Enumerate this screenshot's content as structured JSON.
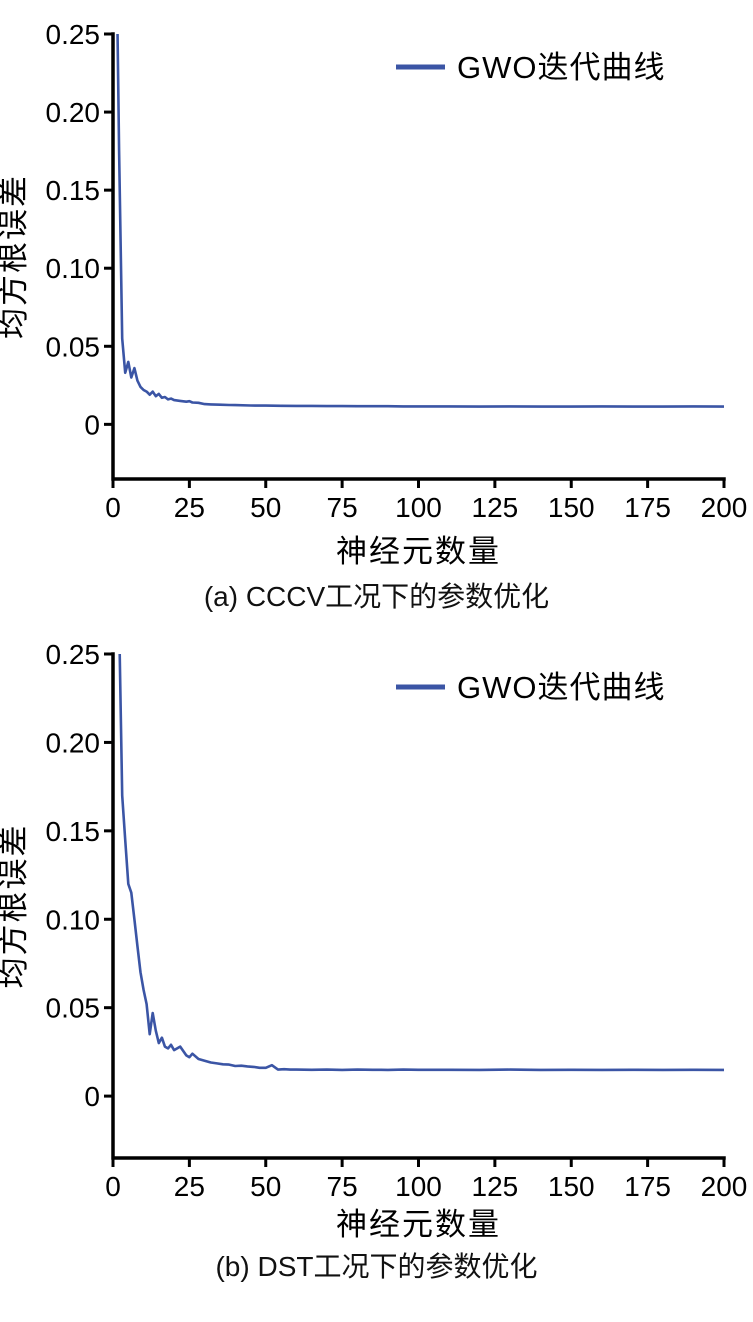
{
  "figure": {
    "accent_color": "#3b55a5",
    "axis_color": "#000000",
    "background": "#ffffff"
  },
  "chart_data": [
    {
      "type": "line",
      "caption": "(a) CCCV工况下的参数优化",
      "xlabel": "神经元数量",
      "ylabel": "均方根误差",
      "grid": false,
      "legend_position": "top-right",
      "legend": [
        {
          "label": "GWO迭代曲线",
          "color": "#3b55a5"
        }
      ],
      "xlim": [
        0,
        200
      ],
      "ylim": [
        -0.035,
        0.25
      ],
      "x_ticks": [
        0,
        25,
        50,
        75,
        100,
        125,
        150,
        175,
        200
      ],
      "y_ticks": [
        0,
        0.05,
        0.1,
        0.15,
        0.2,
        0.25
      ],
      "y_tick_labels": [
        "0",
        "0.05",
        "0.10",
        "0.15",
        "0.20",
        "0.25"
      ],
      "series": [
        {
          "name": "GWO迭代曲线",
          "color": "#3b55a5",
          "x": [
            1,
            2,
            3,
            4,
            5,
            6,
            7,
            8,
            9,
            10,
            11,
            12,
            13,
            14,
            15,
            16,
            17,
            18,
            19,
            20,
            22,
            24,
            25,
            26,
            28,
            30,
            32,
            35,
            38,
            40,
            45,
            50,
            55,
            60,
            65,
            70,
            75,
            80,
            85,
            90,
            95,
            100,
            110,
            120,
            130,
            140,
            150,
            160,
            170,
            180,
            190,
            200
          ],
          "y": [
            0.32,
            0.175,
            0.055,
            0.033,
            0.04,
            0.03,
            0.036,
            0.028,
            0.024,
            0.022,
            0.021,
            0.019,
            0.021,
            0.018,
            0.0195,
            0.017,
            0.0175,
            0.016,
            0.0165,
            0.0155,
            0.015,
            0.0145,
            0.0148,
            0.014,
            0.0138,
            0.013,
            0.0128,
            0.0126,
            0.0124,
            0.0123,
            0.0121,
            0.012,
            0.0119,
            0.0118,
            0.0118,
            0.0117,
            0.0117,
            0.0116,
            0.0116,
            0.0116,
            0.0115,
            0.0115,
            0.0115,
            0.0114,
            0.0115,
            0.0114,
            0.0114,
            0.0115,
            0.0114,
            0.0114,
            0.0115,
            0.0114
          ]
        }
      ]
    },
    {
      "type": "line",
      "caption": "(b) DST工况下的参数优化",
      "xlabel": "神经元数量",
      "ylabel": "均方根误差",
      "grid": false,
      "legend_position": "top-right",
      "legend": [
        {
          "label": "GWO迭代曲线",
          "color": "#3b55a5"
        }
      ],
      "xlim": [
        0,
        200
      ],
      "ylim": [
        -0.035,
        0.25
      ],
      "x_ticks": [
        0,
        25,
        50,
        75,
        100,
        125,
        150,
        175,
        200
      ],
      "y_ticks": [
        0,
        0.05,
        0.1,
        0.15,
        0.2,
        0.25
      ],
      "y_tick_labels": [
        "0",
        "0.05",
        "0.10",
        "0.15",
        "0.20",
        "0.25"
      ],
      "series": [
        {
          "name": "GWO迭代曲线",
          "color": "#3b55a5",
          "x": [
            1,
            2,
            3,
            4,
            5,
            6,
            7,
            8,
            9,
            10,
            11,
            12,
            13,
            14,
            15,
            16,
            17,
            18,
            19,
            20,
            22,
            24,
            25,
            26,
            28,
            30,
            32,
            34,
            36,
            38,
            40,
            42,
            44,
            46,
            48,
            50,
            52,
            54,
            56,
            58,
            60,
            65,
            70,
            75,
            80,
            85,
            90,
            95,
            100,
            110,
            120,
            130,
            140,
            150,
            160,
            170,
            180,
            190,
            200
          ],
          "y": [
            0.33,
            0.27,
            0.17,
            0.145,
            0.12,
            0.115,
            0.1,
            0.085,
            0.07,
            0.06,
            0.052,
            0.035,
            0.047,
            0.037,
            0.03,
            0.033,
            0.028,
            0.027,
            0.029,
            0.026,
            0.028,
            0.023,
            0.022,
            0.024,
            0.021,
            0.02,
            0.019,
            0.0185,
            0.018,
            0.0178,
            0.017,
            0.0172,
            0.0168,
            0.0165,
            0.016,
            0.016,
            0.0175,
            0.015,
            0.0152,
            0.015,
            0.015,
            0.0149,
            0.015,
            0.0148,
            0.015,
            0.0149,
            0.0148,
            0.015,
            0.0149,
            0.0149,
            0.0148,
            0.015,
            0.0148,
            0.0149,
            0.0148,
            0.0149,
            0.0148,
            0.0149,
            0.0148
          ]
        }
      ]
    }
  ]
}
